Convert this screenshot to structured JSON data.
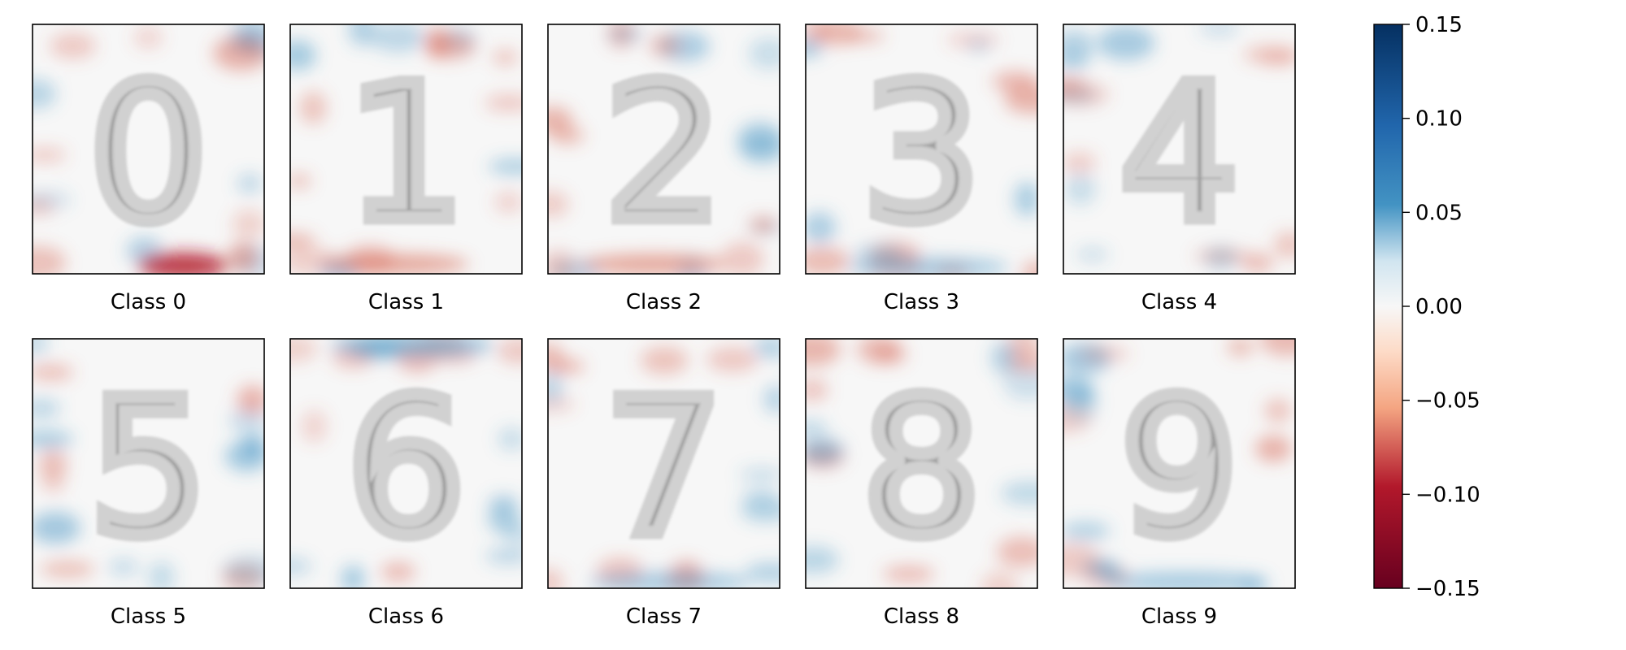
{
  "chart_data": {
    "type": "heatmap",
    "panels": [
      {
        "label": "Class 0",
        "digit": "0"
      },
      {
        "label": "Class 1",
        "digit": "1"
      },
      {
        "label": "Class 2",
        "digit": "2"
      },
      {
        "label": "Class 3",
        "digit": "3"
      },
      {
        "label": "Class 4",
        "digit": "4"
      },
      {
        "label": "Class 5",
        "digit": "5"
      },
      {
        "label": "Class 6",
        "digit": "6"
      },
      {
        "label": "Class 7",
        "digit": "7"
      },
      {
        "label": "Class 8",
        "digit": "8"
      },
      {
        "label": "Class 9",
        "digit": "9"
      }
    ],
    "colorbar": {
      "vmin": -0.15,
      "vmax": 0.15,
      "ticks": [
        0.15,
        0.1,
        0.05,
        0.0,
        -0.05,
        -0.1,
        -0.15
      ],
      "tick_labels": [
        "0.15",
        "0.10",
        "0.05",
        "0.00",
        "−0.05",
        "−0.10",
        "−0.15"
      ],
      "colormap": "RdBu"
    },
    "grid": false
  },
  "colors": {
    "strong_negative": "#67001f",
    "negative": "#d6604d",
    "neutral": "#f7f7f7",
    "positive": "#4393c3",
    "strong_positive": "#053061",
    "digit_ink": "#8a8a8a"
  }
}
